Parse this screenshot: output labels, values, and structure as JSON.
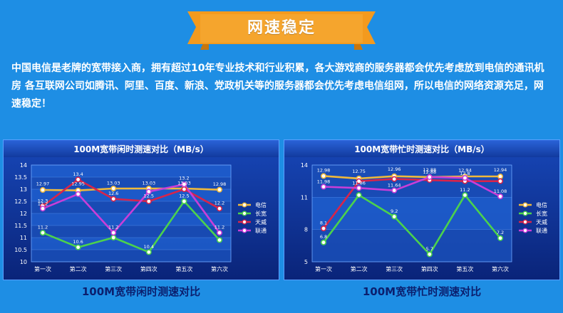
{
  "banner": {
    "title": "网速稳定"
  },
  "intro": {
    "text": "中国电信是老牌的宽带接入商，拥有超过10年专业技术和行业积累，各大游戏商的服务器都会优先考虑放到电信的通讯机房 各互联网公司如腾讯、阿里、百度、新浪、党政机关等的服务器都会优先考虑电信组网，所以电信的网络资源充足，网速稳定！"
  },
  "colors": {
    "background": "#1e8ee4",
    "banner": "#f39a1e",
    "chart_bg": "#0c2e9c",
    "series": [
      "#f0b93a",
      "#4cd24c",
      "#d8244a",
      "#c93ed8"
    ]
  },
  "captions": {
    "idle": "100M宽带闲时测速对比",
    "busy": "100M宽带忙时测速对比"
  },
  "chart_data": [
    {
      "type": "line",
      "title": "100M宽带闲时测速对比（MB/s）",
      "categories": [
        "第一次",
        "第二次",
        "第三次",
        "第四次",
        "第五次",
        "第六次"
      ],
      "ylim": [
        10,
        14
      ],
      "yticks": [
        10,
        10.5,
        11,
        11.5,
        12,
        12.5,
        13,
        13.5,
        14
      ],
      "legend_position": "right",
      "series": [
        {
          "name": "电信",
          "values": [
            12.97,
            12.95,
            13.03,
            13.03,
            13.03,
            12.98
          ]
        },
        {
          "name": "长宽",
          "values": [
            11.2,
            10.6,
            11.0,
            10.4,
            12.5,
            10.9
          ]
        },
        {
          "name": "天威",
          "values": [
            12.3,
            13.4,
            12.6,
            12.5,
            13.0,
            12.2
          ]
        },
        {
          "name": "联通",
          "values": [
            12.2,
            12.8,
            11.2,
            12.9,
            13.2,
            11.2
          ]
        }
      ],
      "labels": [
        {
          "text": "12.97",
          "series": 0,
          "index": 0,
          "y": 13.22
        },
        {
          "text": "12.95",
          "series": 0,
          "index": 1,
          "y": 13.22
        },
        {
          "text": "13.03",
          "series": 0,
          "index": 2,
          "y": 13.25
        },
        {
          "text": "13.03",
          "series": 0,
          "index": 3,
          "y": 13.25
        },
        {
          "text": "13.03",
          "series": 0,
          "index": 4,
          "y": 13.25
        },
        {
          "text": "12.98",
          "series": 0,
          "index": 5,
          "y": 13.2
        },
        {
          "text": "11.2",
          "series": 1,
          "index": 0,
          "y": 11.42
        },
        {
          "text": "10.6",
          "series": 1,
          "index": 1,
          "y": 10.82
        },
        {
          "text": "10.4",
          "series": 1,
          "index": 3,
          "y": 10.62
        },
        {
          "text": "12.5",
          "series": 1,
          "index": 4,
          "y": 12.72
        },
        {
          "text": "12.3",
          "series": 2,
          "index": 0,
          "y": 12.52
        },
        {
          "text": "13.4",
          "series": 2,
          "index": 1,
          "y": 13.62
        },
        {
          "text": "12.6",
          "series": 2,
          "index": 2,
          "y": 12.82
        },
        {
          "text": "12.5",
          "series": 2,
          "index": 3,
          "y": 12.72
        },
        {
          "text": "12.2",
          "series": 2,
          "index": 5,
          "y": 12.42
        },
        {
          "text": "12.2",
          "series": 3,
          "index": 0,
          "y": 12.4
        },
        {
          "text": "11.2",
          "series": 3,
          "index": 2,
          "y": 11.42
        },
        {
          "text": "13.2",
          "series": 3,
          "index": 4,
          "y": 13.45
        },
        {
          "text": "11.2",
          "series": 3,
          "index": 5,
          "y": 11.42
        }
      ]
    },
    {
      "type": "line",
      "title": "100M宽带忙时测速对比（MB/s）",
      "categories": [
        "第一次",
        "第二次",
        "第三次",
        "第四次",
        "第五次",
        "第六次"
      ],
      "ylim": [
        5,
        14
      ],
      "yticks": [
        5,
        8,
        11,
        14
      ],
      "legend_position": "right",
      "series": [
        {
          "name": "电信",
          "values": [
            12.98,
            12.75,
            12.96,
            12.88,
            12.94,
            12.94
          ]
        },
        {
          "name": "长宽",
          "values": [
            6.8,
            11.2,
            9.2,
            5.7,
            11.2,
            7.2
          ]
        },
        {
          "name": "天威",
          "values": [
            8.1,
            12.5,
            12.7,
            12.6,
            12.5,
            12.5
          ]
        },
        {
          "name": "联通",
          "values": [
            11.98,
            11.86,
            11.64,
            12.88,
            12.8,
            11.08
          ]
        }
      ],
      "labels": [
        {
          "text": "12.98",
          "series": 0,
          "index": 0,
          "y": 13.5
        },
        {
          "text": "12.75",
          "series": 0,
          "index": 1,
          "y": 13.4
        },
        {
          "text": "12.96",
          "series": 0,
          "index": 2,
          "y": 13.6
        },
        {
          "text": "12.88",
          "series": 0,
          "index": 3,
          "y": 13.55
        },
        {
          "text": "12.94",
          "series": 0,
          "index": 4,
          "y": 13.5
        },
        {
          "text": "12.94",
          "series": 0,
          "index": 5,
          "y": 13.55
        },
        {
          "text": "6.8",
          "series": 1,
          "index": 0,
          "y": 7.3
        },
        {
          "text": "9.2",
          "series": 1,
          "index": 2,
          "y": 9.7
        },
        {
          "text": "5.7",
          "series": 1,
          "index": 3,
          "y": 6.2
        },
        {
          "text": "11.2",
          "series": 1,
          "index": 4,
          "y": 11.7
        },
        {
          "text": "7.2",
          "series": 1,
          "index": 5,
          "y": 7.7
        },
        {
          "text": "8.1",
          "series": 2,
          "index": 0,
          "y": 8.6
        },
        {
          "text": "11.98",
          "series": 3,
          "index": 0,
          "y": 12.45
        },
        {
          "text": "11.86",
          "series": 3,
          "index": 1,
          "y": 12.3
        },
        {
          "text": "11.64",
          "series": 3,
          "index": 2,
          "y": 12.1
        },
        {
          "text": "12.88",
          "series": 3,
          "index": 3,
          "y": 13.35
        },
        {
          "text": "12.8",
          "series": 3,
          "index": 4,
          "y": 13.2
        },
        {
          "text": "11.08",
          "series": 3,
          "index": 5,
          "y": 11.55
        }
      ]
    }
  ]
}
